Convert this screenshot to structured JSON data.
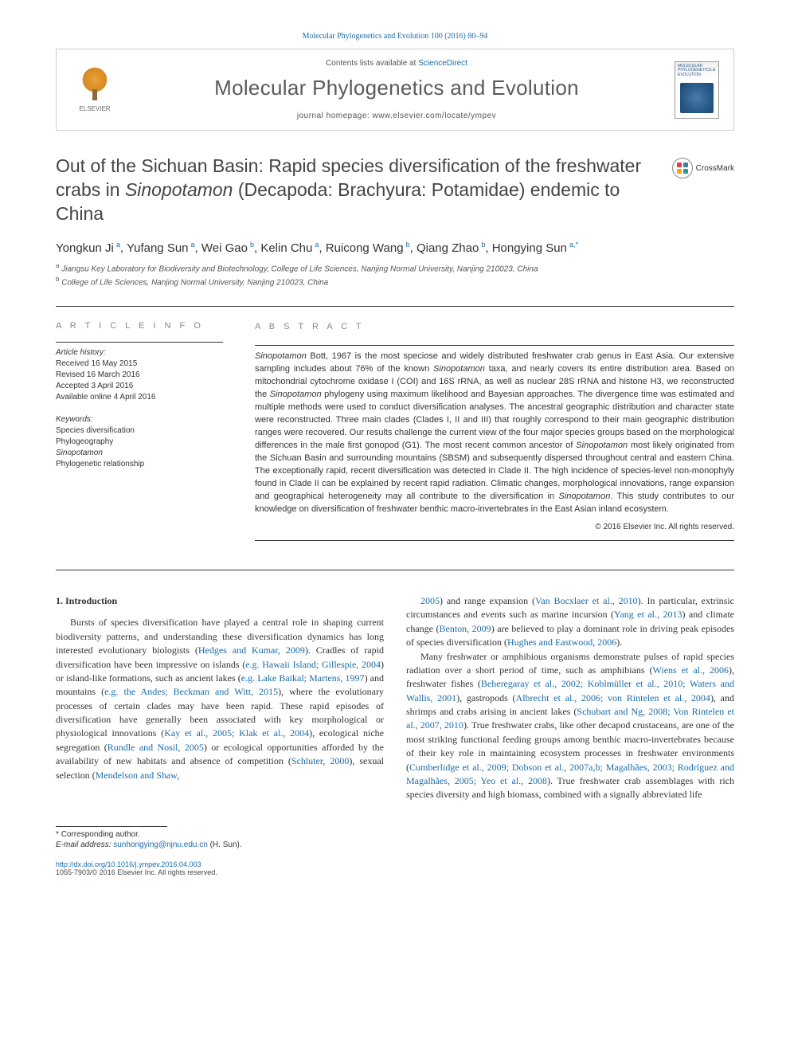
{
  "citation": "Molecular Phylogenetics and Evolution 100 (2016) 80–94",
  "header": {
    "contents_prefix": "Contents lists available at ",
    "contents_link": "ScienceDirect",
    "journal": "Molecular Phylogenetics and Evolution",
    "homepage_prefix": "journal homepage: ",
    "homepage_url": "www.elsevier.com/locate/ympev",
    "elsevier": "ELSEVIER",
    "cover_title": "MOLECULAR PHYLOGENETICS & EVOLUTION"
  },
  "article": {
    "title_pre": "Out of the Sichuan Basin: Rapid species diversification of the freshwater crabs in ",
    "title_em": "Sinopotamon",
    "title_post": " (Decapoda: Brachyura: Potamidae) endemic to China",
    "crossmark": "CrossMark",
    "authors_html": "Yongkun Ji|a|, Yufang Sun|a|, Wei Gao|b|, Kelin Chu|a|, Ruicong Wang|b|, Qiang Zhao|b|, Hongying Sun|a,*|",
    "authors": [
      {
        "name": "Yongkun Ji",
        "aff": "a"
      },
      {
        "name": "Yufang Sun",
        "aff": "a"
      },
      {
        "name": "Wei Gao",
        "aff": "b"
      },
      {
        "name": "Kelin Chu",
        "aff": "a"
      },
      {
        "name": "Ruicong Wang",
        "aff": "b"
      },
      {
        "name": "Qiang Zhao",
        "aff": "b"
      },
      {
        "name": "Hongying Sun",
        "aff": "a,",
        "star": true
      }
    ],
    "affiliations": [
      {
        "sup": "a",
        "text": "Jiangsu Key Laboratory for Biodiversity and Biotechnology, College of Life Sciences, Nanjing Normal University, Nanjing 210023, China"
      },
      {
        "sup": "b",
        "text": "College of Life Sciences, Nanjing Normal University, Nanjing 210023, China"
      }
    ]
  },
  "info": {
    "heading": "A R T I C L E   I N F O",
    "history_label": "Article history:",
    "history": [
      "Received 16 May 2015",
      "Revised 16 March 2016",
      "Accepted 3 April 2016",
      "Available online 4 April 2016"
    ],
    "keywords_label": "Keywords:",
    "keywords": [
      "Species diversification",
      "Phylogeography",
      "Sinopotamon",
      "Phylogenetic relationship"
    ]
  },
  "abstract": {
    "heading": "A B S T R A C T",
    "text": "Sinopotamon Bott, 1967 is the most speciose and widely distributed freshwater crab genus in East Asia. Our extensive sampling includes about 76% of the known Sinopotamon taxa, and nearly covers its entire distribution area. Based on mitochondrial cytochrome oxidase I (COI) and 16S rRNA, as well as nuclear 28S rRNA and histone H3, we reconstructed the Sinopotamon phylogeny using maximum likelihood and Bayesian approaches. The divergence time was estimated and multiple methods were used to conduct diversification analyses. The ancestral geographic distribution and character state were reconstructed. Three main clades (Clades I, II and III) that roughly correspond to their main geographic distribution ranges were recovered. Our results challenge the current view of the four major species groups based on the morphological differences in the male first gonopod (G1). The most recent common ancestor of Sinopotamon most likely originated from the Sichuan Basin and surrounding mountains (SBSM) and subsequently dispersed throughout central and eastern China. The exceptionally rapid, recent diversification was detected in Clade II. The high incidence of species-level non-monophyly found in Clade II can be explained by recent rapid radiation. Climatic changes, morphological innovations, range expansion and geographical heterogeneity may all contribute to the diversification in Sinopotamon. This study contributes to our knowledge on diversification of freshwater benthic macro-invertebrates in the East Asian inland ecosystem.",
    "copyright": "© 2016 Elsevier Inc. All rights reserved."
  },
  "body": {
    "section_num": "1.",
    "section_title": "Introduction",
    "col1_p1": "Bursts of species diversification have played a central role in shaping current biodiversity patterns, and understanding these diversification dynamics has long interested evolutionary biologists (Hedges and Kumar, 2009). Cradles of rapid diversification have been impressive on islands (e.g. Hawaii Island; Gillespie, 2004) or island-like formations, such as ancient lakes (e.g. Lake Baikal; Martens, 1997) and mountains (e.g. the Andes; Beckman and Witt, 2015), where the evolutionary processes of certain clades may have been rapid. These rapid episodes of diversification have generally been associated with key morphological or physiological innovations (Kay et al., 2005; Klak et al., 2004), ecological niche segregation (Rundle and Nosil, 2005) or ecological opportunities afforded by the availability of new habitats and absence of competition (Schluter, 2000), sexual selection (Mendelson and Shaw,",
    "col2_p1": "2005) and range expansion (Van Bocxlaer et al., 2010). In particular, extrinsic circumstances and events such as marine incursion (Yang et al., 2013) and climate change (Benton, 2009) are believed to play a dominant role in driving peak episodes of species diversification (Hughes and Eastwood, 2006).",
    "col2_p2": "Many freshwater or amphibious organisms demonstrate pulses of rapid species radiation over a short period of time, such as amphibians (Wiens et al., 2006), freshwater fishes (Beheregaray et al., 2002; Koblmüller et al., 2010; Waters and Wallis, 2001), gastropods (Albrecht et al., 2006; von Rintelen et al., 2004), and shrimps and crabs arising in ancient lakes (Schubart and Ng, 2008; Von Rintelen et al., 2007, 2010). True freshwater crabs, like other decapod crustaceans, are one of the most striking functional feeding groups among benthic macro-invertebrates because of their key role in maintaining ecosystem processes in freshwater environments (Cumberlidge et al., 2009; Dobson et al., 2007a,b; Magalhães, 2003; Rodríguez and Magalhães, 2005; Yeo et al., 2008). True freshwater crab assemblages with rich species diversity and high biomass, combined with a signally abbreviated life"
  },
  "footer": {
    "corresp_marker": "*",
    "corresp_text": "Corresponding author.",
    "email_label": "E-mail address: ",
    "email": "sunhongying@njnu.edu.cn",
    "email_name": " (H. Sun).",
    "doi": "http://dx.doi.org/10.1016/j.ympev.2016.04.003",
    "issn": "1055-7903/© 2016 Elsevier Inc. All rights reserved."
  },
  "colors": {
    "link": "#1a6ba8",
    "text": "#333333",
    "muted": "#888888",
    "border": "#cccccc"
  }
}
